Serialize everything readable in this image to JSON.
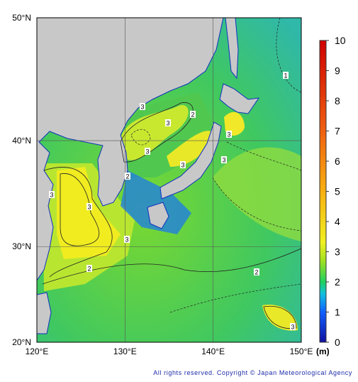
{
  "map": {
    "lat_ticks": [
      {
        "value": 20,
        "label": "20°N"
      },
      {
        "value": 30,
        "label": "30°N"
      },
      {
        "value": 40,
        "label": "40°N"
      },
      {
        "value": 50,
        "label": "50°N"
      }
    ],
    "lon_ticks": [
      {
        "value": 120,
        "label": "120°E"
      },
      {
        "value": 130,
        "label": "130°E"
      },
      {
        "value": 140,
        "label": "140°E"
      },
      {
        "value": 150,
        "label": "150°E"
      }
    ],
    "colorbar": {
      "ticks": [
        0,
        1,
        2,
        3,
        4,
        5,
        6,
        7,
        8,
        9,
        10
      ],
      "unit": "(m)"
    },
    "contour_labels": [
      3,
      3,
      2,
      3,
      3,
      2,
      3,
      3,
      3,
      2,
      2,
      3,
      3,
      3,
      1
    ]
  },
  "footer": "All rights reserved. Copyright © Japan Meteorological Agency"
}
